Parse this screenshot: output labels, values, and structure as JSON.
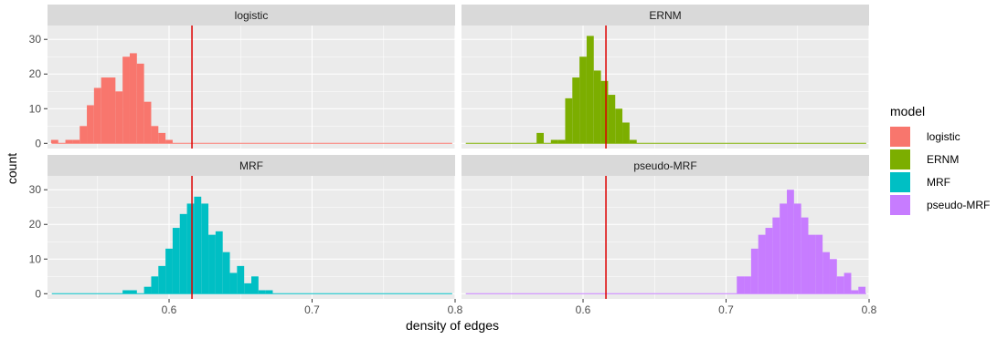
{
  "chart_data": {
    "type": "bar",
    "subtype": "faceted-histogram",
    "xlabel": "density of edges",
    "ylabel": "count",
    "xlim": [
      0.515,
      0.8
    ],
    "ylim": [
      -1.5,
      34
    ],
    "x_ticks": [
      0.6,
      0.7,
      0.8
    ],
    "x_tick_labels": [
      "0.6",
      "0.7",
      "0.8"
    ],
    "y_ticks": [
      0,
      10,
      20,
      30
    ],
    "y_tick_labels": [
      "0",
      "10",
      "20",
      "30"
    ],
    "x_range": [
      0.518,
      0.798
    ],
    "bin_width": 0.005,
    "reference_line": {
      "x": 0.616,
      "color": "#dd0000"
    },
    "panel_background": "#ebebeb",
    "grid_color": "#ffffff",
    "strip_background": "#d9d9d9",
    "legend": {
      "title": "model",
      "position": "right",
      "entries": [
        {
          "label": "logistic",
          "color": "#F8766D"
        },
        {
          "label": "ERNM",
          "color": "#7CAE00"
        },
        {
          "label": "MRF",
          "color": "#00BFC4"
        },
        {
          "label": "pseudo-MRF",
          "color": "#C77CFF"
        }
      ]
    },
    "panels": [
      {
        "title": "logistic",
        "color": "#F8766D",
        "bins": [
          {
            "x": 0.52,
            "y": 1
          },
          {
            "x": 0.525,
            "y": 0
          },
          {
            "x": 0.53,
            "y": 1
          },
          {
            "x": 0.535,
            "y": 1
          },
          {
            "x": 0.54,
            "y": 5
          },
          {
            "x": 0.545,
            "y": 11
          },
          {
            "x": 0.55,
            "y": 16
          },
          {
            "x": 0.555,
            "y": 19
          },
          {
            "x": 0.56,
            "y": 19
          },
          {
            "x": 0.565,
            "y": 15
          },
          {
            "x": 0.57,
            "y": 25
          },
          {
            "x": 0.575,
            "y": 26
          },
          {
            "x": 0.58,
            "y": 23
          },
          {
            "x": 0.585,
            "y": 12
          },
          {
            "x": 0.59,
            "y": 5
          },
          {
            "x": 0.595,
            "y": 3
          },
          {
            "x": 0.6,
            "y": 1
          }
        ]
      },
      {
        "title": "ERNM",
        "color": "#7CAE00",
        "bins": [
          {
            "x": 0.57,
            "y": 3
          },
          {
            "x": 0.575,
            "y": 0
          },
          {
            "x": 0.58,
            "y": 1
          },
          {
            "x": 0.585,
            "y": 1
          },
          {
            "x": 0.59,
            "y": 13
          },
          {
            "x": 0.595,
            "y": 19
          },
          {
            "x": 0.6,
            "y": 25
          },
          {
            "x": 0.605,
            "y": 31
          },
          {
            "x": 0.61,
            "y": 21
          },
          {
            "x": 0.615,
            "y": 18
          },
          {
            "x": 0.62,
            "y": 14
          },
          {
            "x": 0.625,
            "y": 10
          },
          {
            "x": 0.63,
            "y": 6
          },
          {
            "x": 0.635,
            "y": 1
          }
        ]
      },
      {
        "title": "MRF",
        "color": "#00BFC4",
        "bins": [
          {
            "x": 0.57,
            "y": 1
          },
          {
            "x": 0.575,
            "y": 1
          },
          {
            "x": 0.58,
            "y": 0
          },
          {
            "x": 0.585,
            "y": 2
          },
          {
            "x": 0.59,
            "y": 5
          },
          {
            "x": 0.595,
            "y": 8
          },
          {
            "x": 0.6,
            "y": 13
          },
          {
            "x": 0.605,
            "y": 19
          },
          {
            "x": 0.61,
            "y": 23
          },
          {
            "x": 0.615,
            "y": 26
          },
          {
            "x": 0.62,
            "y": 28
          },
          {
            "x": 0.625,
            "y": 26
          },
          {
            "x": 0.63,
            "y": 17
          },
          {
            "x": 0.635,
            "y": 18
          },
          {
            "x": 0.64,
            "y": 12
          },
          {
            "x": 0.645,
            "y": 6
          },
          {
            "x": 0.65,
            "y": 8
          },
          {
            "x": 0.655,
            "y": 3
          },
          {
            "x": 0.66,
            "y": 5
          },
          {
            "x": 0.665,
            "y": 1
          },
          {
            "x": 0.67,
            "y": 1
          }
        ]
      },
      {
        "title": "pseudo-MRF",
        "color": "#C77CFF",
        "bins": [
          {
            "x": 0.71,
            "y": 5
          },
          {
            "x": 0.715,
            "y": 5
          },
          {
            "x": 0.72,
            "y": 13
          },
          {
            "x": 0.725,
            "y": 17
          },
          {
            "x": 0.73,
            "y": 19
          },
          {
            "x": 0.735,
            "y": 22
          },
          {
            "x": 0.74,
            "y": 26
          },
          {
            "x": 0.745,
            "y": 30
          },
          {
            "x": 0.75,
            "y": 26
          },
          {
            "x": 0.755,
            "y": 22
          },
          {
            "x": 0.76,
            "y": 17
          },
          {
            "x": 0.765,
            "y": 17
          },
          {
            "x": 0.77,
            "y": 12
          },
          {
            "x": 0.775,
            "y": 10
          },
          {
            "x": 0.78,
            "y": 5
          },
          {
            "x": 0.785,
            "y": 6
          },
          {
            "x": 0.79,
            "y": 1
          },
          {
            "x": 0.795,
            "y": 2
          }
        ]
      }
    ]
  }
}
